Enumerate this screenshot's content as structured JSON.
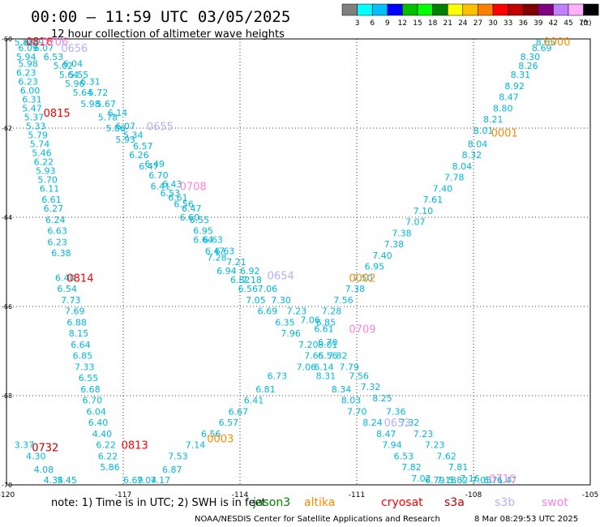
{
  "header": {
    "title": "00:00 – 11:59 UTC 03/05/2025",
    "subtitle": "12 hour collection of altimeter wave heights"
  },
  "colorbar": {
    "unit": "(ft)",
    "ticks": [
      "3",
      "6",
      "9",
      "12",
      "15",
      "18",
      "21",
      "24",
      "27",
      "30",
      "33",
      "36",
      "39",
      "42",
      "45",
      "70"
    ],
    "colors": [
      "#808080",
      "#00ffff",
      "#00c0ff",
      "#0000ff",
      "#00c000",
      "#00ff00",
      "#008000",
      "#ffff00",
      "#ffc000",
      "#ff8000",
      "#ff0000",
      "#c00000",
      "#800000",
      "#800080",
      "#c080ff",
      "#ffb0ff",
      "#000000"
    ]
  },
  "footer": {
    "note": "note:  1) Time is in UTC;  2) SWH is in feet",
    "credit": "NOAA/NESDIS Center for Satellite Applications and Research",
    "timestamp": "8 Mar 08:29:53 UTC 2025"
  },
  "legend": [
    {
      "name": "jason3",
      "color": "#008000"
    },
    {
      "name": "altika",
      "color": "#ff8c00"
    },
    {
      "name": "cryosat",
      "color": "#ff0000"
    },
    {
      "name": "s3a",
      "color": "#c00000"
    },
    {
      "name": "s3b",
      "color": "#b0b0ff"
    },
    {
      "name": "swot",
      "color": "#ff80e0"
    }
  ],
  "chart_data": {
    "type": "scatter",
    "title": "00:00 – 11:59 UTC 03/05/2025",
    "xlim": [
      -120,
      -105
    ],
    "ylim": [
      -70,
      -60
    ],
    "x_ticks": [
      -120,
      -117,
      -114,
      -111,
      -108,
      -105
    ],
    "y_ticks": [
      -60,
      -62,
      -64,
      -66,
      -68,
      -70
    ],
    "x_tick_labels": [
      "-120",
      "-117",
      "-114",
      "-111",
      "-108",
      "-105"
    ],
    "y_tick_labels": [
      "-60",
      "-62",
      "-64",
      "-66",
      "-68",
      "-70"
    ],
    "grid": true,
    "value_unit": "ft",
    "wave_heights": [
      {
        "x": -119.8,
        "y": -60.0,
        "v": "5.88"
      },
      {
        "x": -119.7,
        "y": -60.2,
        "v": "6.09"
      },
      {
        "x": -119.75,
        "y": -60.4,
        "v": "5.94"
      },
      {
        "x": -119.7,
        "y": -60.55,
        "v": "5.98"
      },
      {
        "x": -119.75,
        "y": -60.75,
        "v": "6.23"
      },
      {
        "x": -119.7,
        "y": -60.95,
        "v": "6.23"
      },
      {
        "x": -119.65,
        "y": -61.15,
        "v": "6.00"
      },
      {
        "x": -119.6,
        "y": -61.35,
        "v": "6.31"
      },
      {
        "x": -119.6,
        "y": -61.55,
        "v": "5.47"
      },
      {
        "x": -119.55,
        "y": -61.75,
        "v": "5.37"
      },
      {
        "x": -119.5,
        "y": -61.95,
        "v": "5.33"
      },
      {
        "x": -119.45,
        "y": -62.15,
        "v": "5.79"
      },
      {
        "x": -119.4,
        "y": -62.35,
        "v": "5.74"
      },
      {
        "x": -119.35,
        "y": -62.55,
        "v": "5.46"
      },
      {
        "x": -119.3,
        "y": -62.75,
        "v": "6.22"
      },
      {
        "x": -119.25,
        "y": -62.95,
        "v": "5.93"
      },
      {
        "x": -119.2,
        "y": -63.15,
        "v": "5.70"
      },
      {
        "x": -119.15,
        "y": -63.35,
        "v": "6.11"
      },
      {
        "x": -119.1,
        "y": -63.6,
        "v": "6.61"
      },
      {
        "x": -119.05,
        "y": -63.8,
        "v": "6.27"
      },
      {
        "x": -119.0,
        "y": -64.05,
        "v": "6.24"
      },
      {
        "x": -118.95,
        "y": -64.3,
        "v": "6.63"
      },
      {
        "x": -118.95,
        "y": -64.55,
        "v": "6.23"
      },
      {
        "x": -118.85,
        "y": -64.8,
        "v": "6.38"
      },
      {
        "x": -118.75,
        "y": -65.35,
        "v": "6.40"
      },
      {
        "x": -118.7,
        "y": -65.6,
        "v": "6.54"
      },
      {
        "x": -118.6,
        "y": -65.85,
        "v": "7.73"
      },
      {
        "x": -118.5,
        "y": -66.1,
        "v": "7.69"
      },
      {
        "x": -118.45,
        "y": -66.35,
        "v": "6.88"
      },
      {
        "x": -118.4,
        "y": -66.6,
        "v": "8.15"
      },
      {
        "x": -118.35,
        "y": -66.85,
        "v": "6.64"
      },
      {
        "x": -118.3,
        "y": -67.1,
        "v": "6.85"
      },
      {
        "x": -118.25,
        "y": -67.35,
        "v": "7.33"
      },
      {
        "x": -118.15,
        "y": -67.6,
        "v": "6.55"
      },
      {
        "x": -118.1,
        "y": -67.85,
        "v": "6.68"
      },
      {
        "x": -118.05,
        "y": -68.1,
        "v": "6.70"
      },
      {
        "x": -117.95,
        "y": -68.35,
        "v": "6.04"
      },
      {
        "x": -117.9,
        "y": -68.6,
        "v": "6.40"
      },
      {
        "x": -117.8,
        "y": -68.85,
        "v": "4.40"
      },
      {
        "x": -117.7,
        "y": -69.1,
        "v": "6.22"
      },
      {
        "x": -117.65,
        "y": -69.35,
        "v": "6.22"
      },
      {
        "x": -117.6,
        "y": -69.6,
        "v": "5.86"
      },
      {
        "x": -119.55,
        "y": -60.0,
        "v": "6.49"
      },
      {
        "x": -119.3,
        "y": -60.2,
        "v": "6.07"
      },
      {
        "x": -119.05,
        "y": -60.4,
        "v": "6.53"
      },
      {
        "x": -118.8,
        "y": -60.6,
        "v": "5.02"
      },
      {
        "x": -118.55,
        "y": -60.55,
        "v": "6.04"
      },
      {
        "x": -118.4,
        "y": -60.8,
        "v": "5.55"
      },
      {
        "x": -118.65,
        "y": -60.8,
        "v": "5.64"
      },
      {
        "x": -118.5,
        "y": -61.0,
        "v": "5.96"
      },
      {
        "x": -118.1,
        "y": -60.95,
        "v": "6.31"
      },
      {
        "x": -118.3,
        "y": -61.2,
        "v": "5.64"
      },
      {
        "x": -117.9,
        "y": -61.2,
        "v": "5.72"
      },
      {
        "x": -118.1,
        "y": -61.45,
        "v": "5.98"
      },
      {
        "x": -117.7,
        "y": -61.45,
        "v": "5.67"
      },
      {
        "x": -117.4,
        "y": -61.65,
        "v": "6.14"
      },
      {
        "x": -117.65,
        "y": -61.75,
        "v": "5.78"
      },
      {
        "x": -117.2,
        "y": -61.95,
        "v": "6.07"
      },
      {
        "x": -117.45,
        "y": -62.0,
        "v": "5.86"
      },
      {
        "x": -117.0,
        "y": -62.15,
        "v": "5.34"
      },
      {
        "x": -117.2,
        "y": -62.25,
        "v": "5.93"
      },
      {
        "x": -116.75,
        "y": -62.4,
        "v": "6.57"
      },
      {
        "x": -116.85,
        "y": -62.6,
        "v": "6.26"
      },
      {
        "x": -116.45,
        "y": -62.8,
        "v": "6.49"
      },
      {
        "x": -116.6,
        "y": -62.85,
        "v": "6.47"
      },
      {
        "x": -116.35,
        "y": -63.05,
        "v": "6.70"
      },
      {
        "x": -116.3,
        "y": -63.3,
        "v": "6.41"
      },
      {
        "x": -116.0,
        "y": -63.25,
        "v": "6.43"
      },
      {
        "x": -116.05,
        "y": -63.45,
        "v": "6.53"
      },
      {
        "x": -115.85,
        "y": -63.55,
        "v": "6.61"
      },
      {
        "x": -115.7,
        "y": -63.7,
        "v": "6.56"
      },
      {
        "x": -115.5,
        "y": -63.8,
        "v": "6.47"
      },
      {
        "x": -115.55,
        "y": -64.0,
        "v": "6.60"
      },
      {
        "x": -115.3,
        "y": -64.05,
        "v": "6.55"
      },
      {
        "x": -115.2,
        "y": -64.3,
        "v": "6.95"
      },
      {
        "x": -115.2,
        "y": -64.5,
        "v": "6.64"
      },
      {
        "x": -114.95,
        "y": -64.5,
        "v": "6.63"
      },
      {
        "x": -114.9,
        "y": -64.75,
        "v": "6.47"
      },
      {
        "x": -114.65,
        "y": -64.75,
        "v": "6.63"
      },
      {
        "x": -114.85,
        "y": -64.9,
        "v": "7.28"
      },
      {
        "x": -114.35,
        "y": -65.0,
        "v": "7.21"
      },
      {
        "x": -114.6,
        "y": -65.2,
        "v": "6.94"
      },
      {
        "x": -114.0,
        "y": -65.2,
        "v": "6.92"
      },
      {
        "x": -114.25,
        "y": -65.4,
        "v": "6.82"
      },
      {
        "x": -113.95,
        "y": -65.4,
        "v": "7.18"
      },
      {
        "x": -114.05,
        "y": -65.6,
        "v": "6.56"
      },
      {
        "x": -113.55,
        "y": -65.6,
        "v": "7.06"
      },
      {
        "x": -113.85,
        "y": -65.85,
        "v": "7.05"
      },
      {
        "x": -113.2,
        "y": -65.85,
        "v": "7.30"
      },
      {
        "x": -113.55,
        "y": -66.1,
        "v": "6.69"
      },
      {
        "x": -112.8,
        "y": -66.1,
        "v": "7.23"
      },
      {
        "x": -113.1,
        "y": -66.35,
        "v": "6.35"
      },
      {
        "x": -112.45,
        "y": -66.3,
        "v": "7.06"
      },
      {
        "x": -112.95,
        "y": -66.6,
        "v": "7.96"
      },
      {
        "x": -112.1,
        "y": -66.5,
        "v": "6.61"
      },
      {
        "x": -112.5,
        "y": -66.85,
        "v": "7.20"
      },
      {
        "x": -112.0,
        "y": -66.8,
        "v": "6.70"
      },
      {
        "x": -112.35,
        "y": -67.1,
        "v": "7.65"
      },
      {
        "x": -112.0,
        "y": -67.1,
        "v": "6.56"
      },
      {
        "x": -112.55,
        "y": -67.35,
        "v": "7.06"
      },
      {
        "x": -112.1,
        "y": -67.35,
        "v": "6.14"
      },
      {
        "x": -113.3,
        "y": -67.55,
        "v": "6.73"
      },
      {
        "x": -112.05,
        "y": -67.55,
        "v": "8.31"
      },
      {
        "x": -111.65,
        "y": -67.85,
        "v": "8.34"
      },
      {
        "x": -111.4,
        "y": -68.1,
        "v": "8.03"
      },
      {
        "x": -111.25,
        "y": -68.35,
        "v": "7.70"
      },
      {
        "x": -110.85,
        "y": -68.6,
        "v": "8.24"
      },
      {
        "x": -110.5,
        "y": -68.85,
        "v": "8.47"
      },
      {
        "x": -110.35,
        "y": -69.1,
        "v": "7.94"
      },
      {
        "x": -110.05,
        "y": -69.35,
        "v": "6.53"
      },
      {
        "x": -109.85,
        "y": -69.6,
        "v": "7.82"
      },
      {
        "x": -113.6,
        "y": -67.85,
        "v": "6.81"
      },
      {
        "x": -113.9,
        "y": -68.1,
        "v": "6.41"
      },
      {
        "x": -114.3,
        "y": -68.35,
        "v": "6.67"
      },
      {
        "x": -114.55,
        "y": -68.6,
        "v": "6.57"
      },
      {
        "x": -115.0,
        "y": -68.85,
        "v": "6.56"
      },
      {
        "x": -115.4,
        "y": -69.1,
        "v": "7.14"
      },
      {
        "x": -115.85,
        "y": -69.35,
        "v": "7.53"
      },
      {
        "x": -116.0,
        "y": -69.65,
        "v": "6.87"
      },
      {
        "x": -116.3,
        "y": -69.9,
        "v": "7.17"
      },
      {
        "x": -116.65,
        "y": -70.15,
        "v": "7.04"
      },
      {
        "x": -117.0,
        "y": -70.4,
        "v": "6.69"
      },
      {
        "x": -119.8,
        "y": -69.1,
        "v": "3.37"
      },
      {
        "x": -119.5,
        "y": -69.35,
        "v": "4.30"
      },
      {
        "x": -119.3,
        "y": -69.65,
        "v": "4.08"
      },
      {
        "x": -119.05,
        "y": -69.9,
        "v": "4.34"
      },
      {
        "x": -118.7,
        "y": -70.15,
        "v": "5.45"
      },
      {
        "x": -106.4,
        "y": -60.0,
        "v": "8.65"
      },
      {
        "x": -106.5,
        "y": -60.2,
        "v": "8.69"
      },
      {
        "x": -106.8,
        "y": -60.4,
        "v": "8.30"
      },
      {
        "x": -106.85,
        "y": -60.6,
        "v": "8.26"
      },
      {
        "x": -107.05,
        "y": -60.8,
        "v": "8.31"
      },
      {
        "x": -107.2,
        "y": -61.05,
        "v": "8.92"
      },
      {
        "x": -107.35,
        "y": -61.3,
        "v": "8.47"
      },
      {
        "x": -107.5,
        "y": -61.55,
        "v": "8.80"
      },
      {
        "x": -107.75,
        "y": -61.8,
        "v": "8.21"
      },
      {
        "x": -108.0,
        "y": -62.05,
        "v": "8.01"
      },
      {
        "x": -108.15,
        "y": -62.35,
        "v": "8.04"
      },
      {
        "x": -108.3,
        "y": -62.6,
        "v": "8.32"
      },
      {
        "x": -108.55,
        "y": -62.85,
        "v": "8.04"
      },
      {
        "x": -108.75,
        "y": -63.1,
        "v": "7.78"
      },
      {
        "x": -109.05,
        "y": -63.35,
        "v": "7.40"
      },
      {
        "x": -109.3,
        "y": -63.6,
        "v": "7.61"
      },
      {
        "x": -109.55,
        "y": -63.85,
        "v": "7.10"
      },
      {
        "x": -109.75,
        "y": -64.1,
        "v": "7.07"
      },
      {
        "x": -110.1,
        "y": -64.35,
        "v": "7.38"
      },
      {
        "x": -110.3,
        "y": -64.6,
        "v": "7.38"
      },
      {
        "x": -110.6,
        "y": -64.85,
        "v": "7.40"
      },
      {
        "x": -110.8,
        "y": -65.1,
        "v": "6.95"
      },
      {
        "x": -111.1,
        "y": -65.35,
        "v": "7.50"
      },
      {
        "x": -111.3,
        "y": -65.6,
        "v": "7.38"
      },
      {
        "x": -111.6,
        "y": -65.85,
        "v": "7.56"
      },
      {
        "x": -111.9,
        "y": -66.1,
        "v": "7.28"
      },
      {
        "x": -112.05,
        "y": -66.35,
        "v": "6.85"
      },
      {
        "x": -111.75,
        "y": -67.1,
        "v": "7.82"
      },
      {
        "x": -111.45,
        "y": -67.35,
        "v": "7.79"
      },
      {
        "x": -111.2,
        "y": -67.55,
        "v": "7.56"
      },
      {
        "x": -110.9,
        "y": -67.8,
        "v": "7.32"
      },
      {
        "x": -110.6,
        "y": -68.05,
        "v": "8.25"
      },
      {
        "x": -110.25,
        "y": -68.35,
        "v": "7.36"
      },
      {
        "x": -109.9,
        "y": -68.6,
        "v": "7.32"
      },
      {
        "x": -109.55,
        "y": -68.85,
        "v": "7.23"
      },
      {
        "x": -109.25,
        "y": -69.1,
        "v": "7.23"
      },
      {
        "x": -108.95,
        "y": -69.35,
        "v": "7.62"
      },
      {
        "x": -108.65,
        "y": -69.6,
        "v": "7.81"
      },
      {
        "x": -108.35,
        "y": -69.85,
        "v": "7.16"
      },
      {
        "x": -108.05,
        "y": -70.1,
        "v": "7.05"
      },
      {
        "x": -107.75,
        "y": -70.35,
        "v": "6.71"
      },
      {
        "x": -107.4,
        "y": -70.6,
        "v": "6.47"
      },
      {
        "x": -109.6,
        "y": -69.85,
        "v": "7.02"
      },
      {
        "x": -109.25,
        "y": -70.1,
        "v": "6.79"
      },
      {
        "x": -108.95,
        "y": -70.35,
        "v": "7.18"
      },
      {
        "x": -108.65,
        "y": -70.6,
        "v": "5.82"
      },
      {
        "x": -112.0,
        "y": -66.85,
        "v": "8.01"
      }
    ],
    "pass_times": [
      {
        "x": -119.5,
        "y": -60.0,
        "time": "0816",
        "sat": "cryosat"
      },
      {
        "x": -119.1,
        "y": -60.0,
        "time": "0706",
        "sat": "swot"
      },
      {
        "x": -118.6,
        "y": -60.2,
        "time": "0656",
        "sat": "s3b"
      },
      {
        "x": -119.05,
        "y": -61.65,
        "time": "0815",
        "sat": "cryosat"
      },
      {
        "x": -116.4,
        "y": -61.95,
        "time": "0655",
        "sat": "s3b"
      },
      {
        "x": -115.55,
        "y": -63.3,
        "time": "0708",
        "sat": "swot"
      },
      {
        "x": -118.45,
        "y": -65.35,
        "time": "0814",
        "sat": "cryosat"
      },
      {
        "x": -113.3,
        "y": -65.3,
        "time": "0654",
        "sat": "s3b"
      },
      {
        "x": -111.2,
        "y": -66.5,
        "time": "0709",
        "sat": "swot"
      },
      {
        "x": -111.2,
        "y": -65.35,
        "time": "0002",
        "sat": "altika"
      },
      {
        "x": -107.55,
        "y": -62.1,
        "time": "0001",
        "sat": "altika"
      },
      {
        "x": -106.2,
        "y": -60.0,
        "time": "0000",
        "sat": "altika"
      },
      {
        "x": -117.05,
        "y": -69.1,
        "time": "0813",
        "sat": "cryosat"
      },
      {
        "x": -119.35,
        "y": -69.15,
        "time": "0732",
        "sat": "s3a"
      },
      {
        "x": -114.85,
        "y": -68.95,
        "time": "0003",
        "sat": "altika"
      },
      {
        "x": -110.3,
        "y": -68.6,
        "time": "0653",
        "sat": "s3b"
      },
      {
        "x": -107.6,
        "y": -69.85,
        "time": "0710",
        "sat": "swot"
      }
    ]
  }
}
